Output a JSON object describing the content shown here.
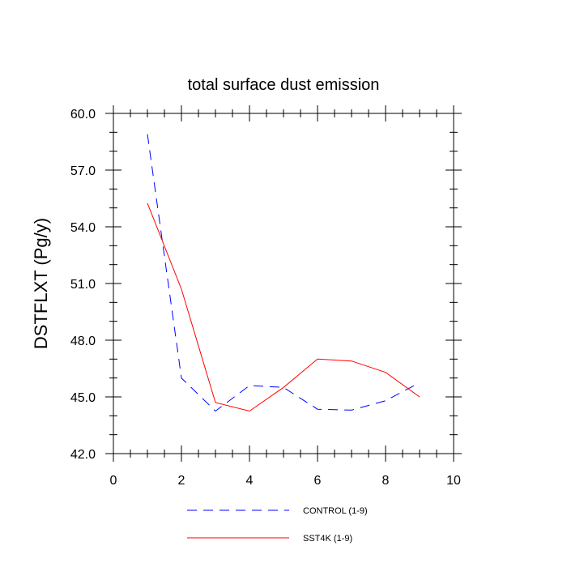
{
  "chart_data": {
    "type": "line",
    "title": "total surface dust emission",
    "xlabel": "",
    "ylabel": "DSTFLXT  (Pg/y)",
    "xlim": [
      0,
      10
    ],
    "ylim": [
      42.0,
      60.0
    ],
    "x_ticks": [
      0,
      2,
      4,
      6,
      8,
      10
    ],
    "x_tick_labels": [
      "0",
      "2",
      "4",
      "6",
      "8",
      "10"
    ],
    "y_ticks": [
      42.0,
      45.0,
      48.0,
      51.0,
      54.0,
      57.0,
      60.0
    ],
    "y_tick_labels": [
      "42.0",
      "45.0",
      "48.0",
      "51.0",
      "54.0",
      "57.0",
      "60.0"
    ],
    "grid": false,
    "legend_position": "bottom",
    "series": [
      {
        "name": "CONTROL (1-9)",
        "color": "#0000ff",
        "dash": "dashed",
        "x": [
          1,
          2,
          3,
          4,
          5,
          6,
          7,
          8,
          9
        ],
        "values": [
          58.9,
          46.0,
          44.25,
          45.6,
          45.5,
          44.35,
          44.3,
          44.8,
          45.75
        ]
      },
      {
        "name": "SST4K (1-9)",
        "color": "#ff0000",
        "dash": "solid",
        "x": [
          1,
          2,
          3,
          4,
          5,
          6,
          7,
          8,
          9
        ],
        "values": [
          55.25,
          50.7,
          44.7,
          44.25,
          45.5,
          47.0,
          46.9,
          46.3,
          45.0
        ]
      }
    ]
  }
}
